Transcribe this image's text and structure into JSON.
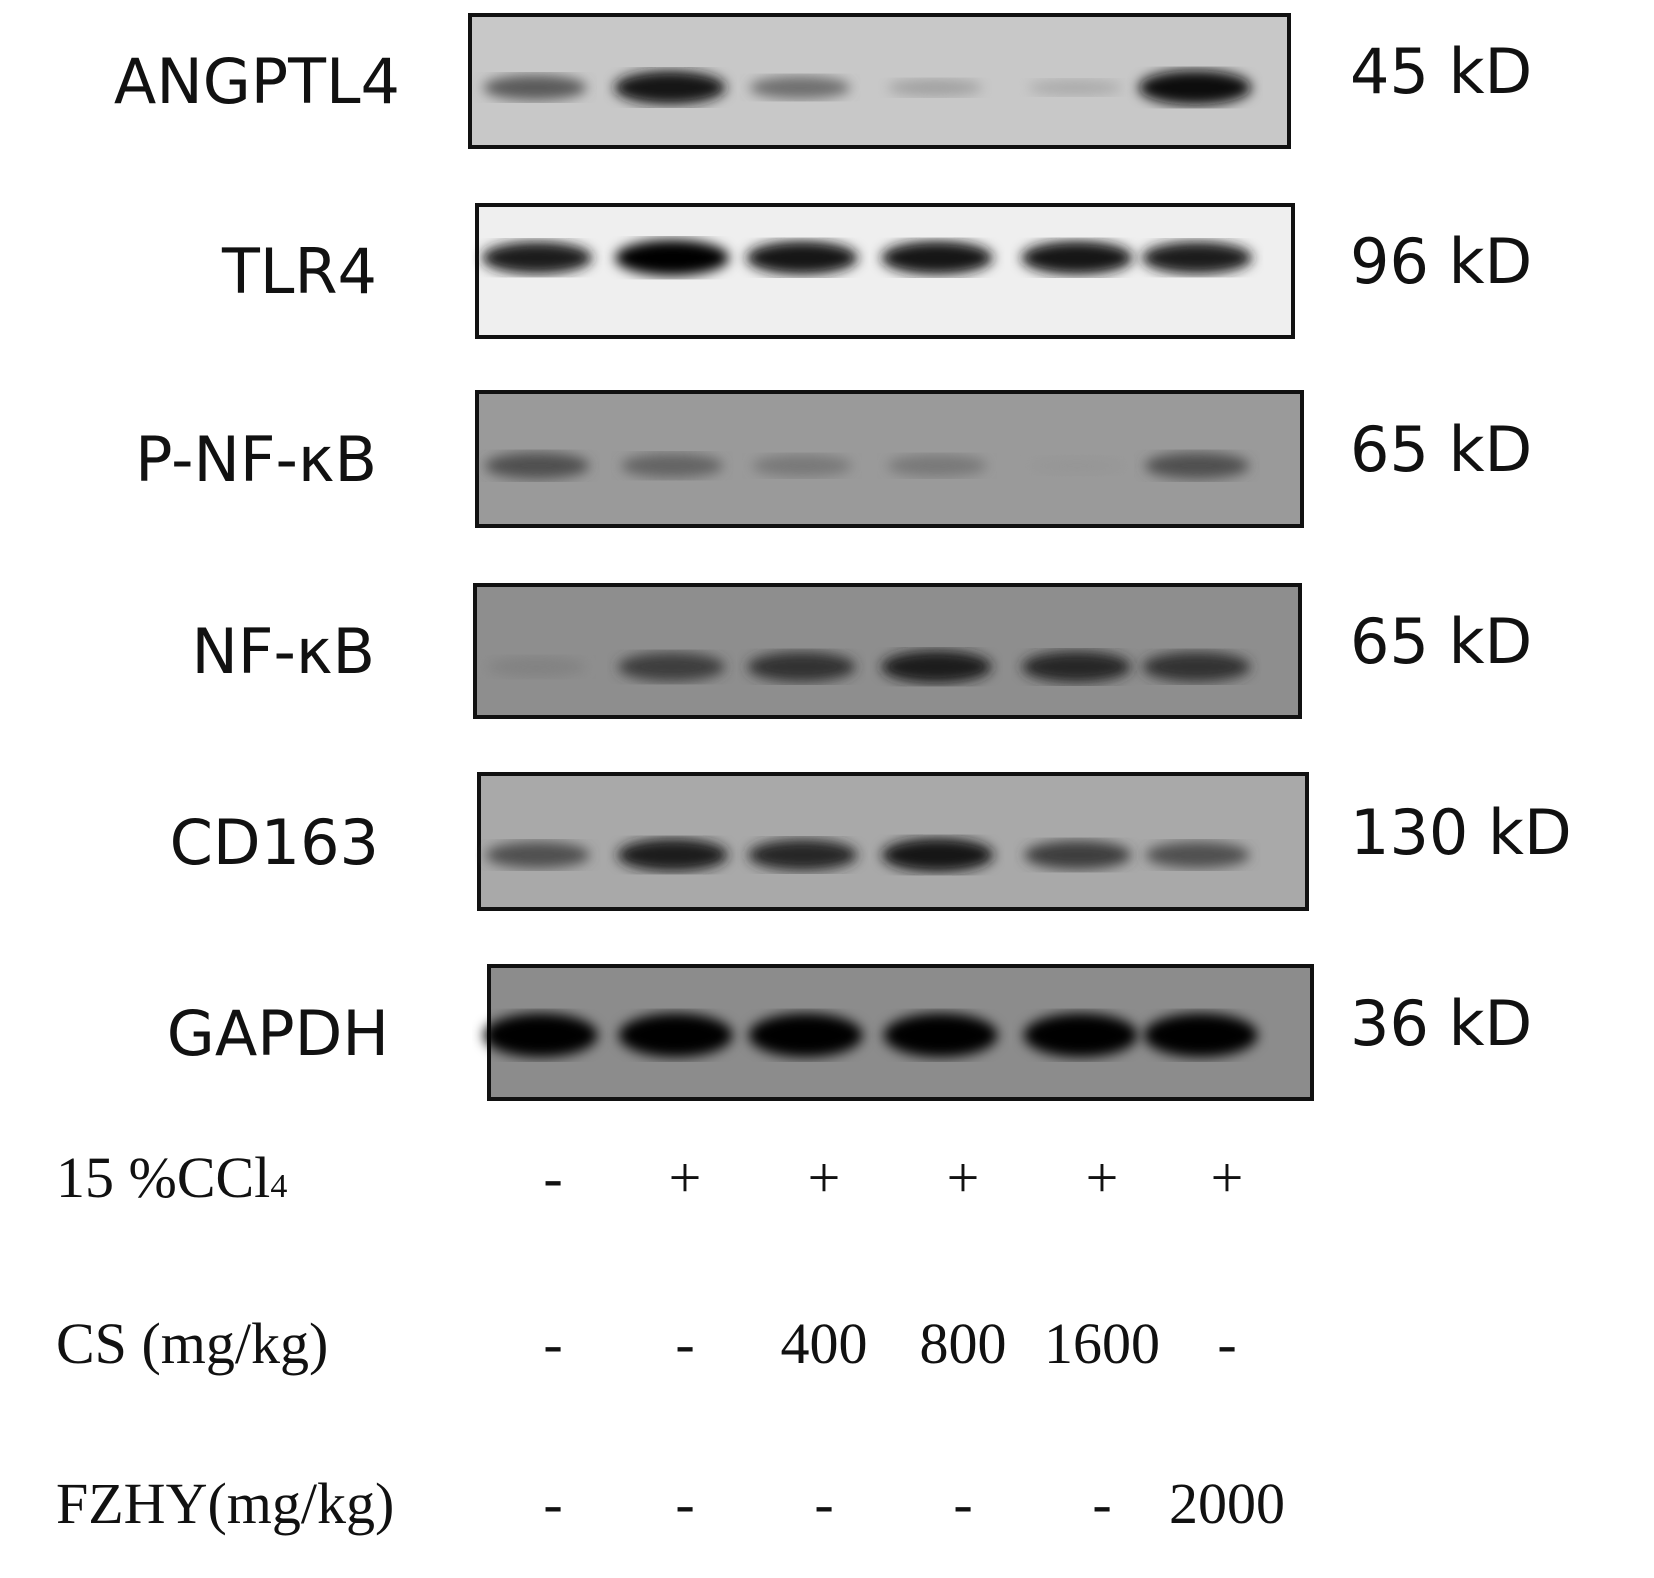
{
  "blots": [
    {
      "protein": "ANGPTL4",
      "size": "45 kD",
      "background": "#c8c8c8",
      "band_intensity": [
        0.55,
        0.9,
        0.45,
        0.2,
        0.15,
        0.95
      ]
    },
    {
      "protein": "TLR4",
      "size": "96 kD",
      "background": "#efefef",
      "band_intensity": [
        0.85,
        1.0,
        0.9,
        0.9,
        0.9,
        0.85
      ]
    },
    {
      "protein": "P-NF-κB",
      "size": "65 kD",
      "background": "#9a9a9a",
      "band_intensity": [
        0.6,
        0.5,
        0.4,
        0.4,
        0.25,
        0.6
      ]
    },
    {
      "protein": "NF-κB",
      "size": "65 kD",
      "background": "#8e8e8e",
      "band_intensity": [
        0.35,
        0.7,
        0.75,
        0.85,
        0.8,
        0.75
      ]
    },
    {
      "protein": "CD163",
      "size": "130 kD",
      "background": "#a9a9a9",
      "band_intensity": [
        0.6,
        0.85,
        0.8,
        0.9,
        0.7,
        0.6
      ]
    },
    {
      "protein": "GAPDH",
      "size": "36 kD",
      "background": "#8c8c8c",
      "band_intensity": [
        1.0,
        1.0,
        1.0,
        1.0,
        1.0,
        1.0
      ]
    }
  ],
  "conditions": [
    {
      "label": "15 %CCl",
      "sub": "4",
      "values": [
        "-",
        "+",
        "+",
        "+",
        "+",
        "+"
      ]
    },
    {
      "label": "CS (mg/kg)",
      "values": [
        "-",
        "-",
        "400",
        "800",
        "1600",
        "-"
      ]
    },
    {
      "label": "FZHY(mg/kg)",
      "values": [
        "-",
        "-",
        "-",
        "-",
        "-",
        "2000"
      ]
    }
  ]
}
